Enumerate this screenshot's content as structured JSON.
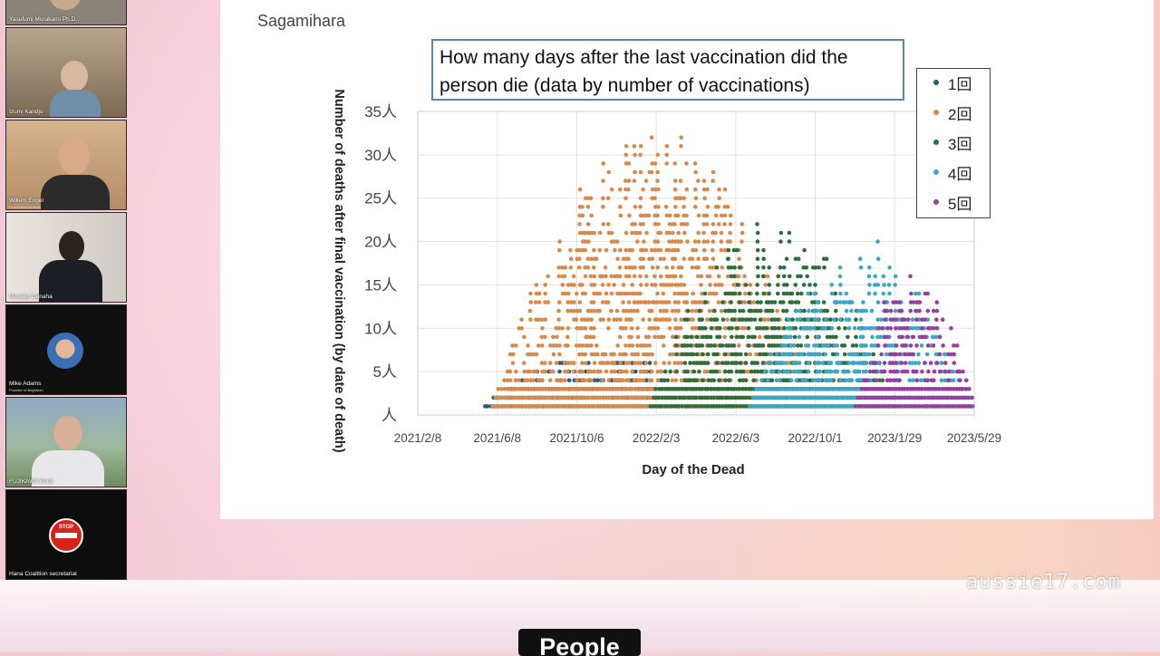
{
  "participants": [
    {
      "name": "Yasufumi Murakami Ph.D.",
      "subtitle": ""
    },
    {
      "name": "Izumi Kandjo",
      "subtitle": ""
    },
    {
      "name": "Willem Engel",
      "subtitle": "Foundation for truth"
    },
    {
      "name": "Masako Ganaha",
      "subtitle": ""
    },
    {
      "name": "Mike Adams",
      "subtitle": "Founder of Brighteon"
    },
    {
      "name": "FUJIKAWA Kenji",
      "subtitle": ""
    },
    {
      "name": "Hana Coalition secretariat",
      "subtitle": ""
    }
  ],
  "slide": {
    "location": "Sagamihara"
  },
  "watermark": "aussie17.com",
  "caption": "People",
  "icons": {
    "stop_logo": "stop-sign-logo-icon",
    "avatar": "avatar-icon"
  },
  "chart_data": {
    "type": "scatter",
    "title": "How many days after the last vaccination did the person die (data by number of vaccinations)",
    "xlabel": "Day of the Dead",
    "ylabel": "Number of deaths after final vaccination (by date of death)",
    "x_ticks": [
      "2021/2/8",
      "2021/6/8",
      "2021/10/6",
      "2022/2/3",
      "2022/6/3",
      "2022/10/1",
      "2023/1/29",
      "2023/5/29"
    ],
    "y_ticks": [
      "人",
      "5人",
      "10人",
      "15人",
      "20人",
      "25人",
      "30人",
      "35人"
    ],
    "ylim": [
      0,
      35
    ],
    "grid": true,
    "legend_position": "top-right",
    "series": [
      {
        "name": "1回",
        "color": "#1f5f7a",
        "window": [
          "2021/5/20",
          "2022/6/1"
        ],
        "peak": 6
      },
      {
        "name": "2回",
        "color": "#d98a4a",
        "window": [
          "2021/6/1",
          "2022/9/30"
        ],
        "peak": 33
      },
      {
        "name": "3回",
        "color": "#2e6e3c",
        "window": [
          "2022/1/25",
          "2023/2/1"
        ],
        "peak": 22
      },
      {
        "name": "4回",
        "color": "#3aa7c9",
        "window": [
          "2022/6/25",
          "2023/5/29"
        ],
        "peak": 19
      },
      {
        "name": "5回",
        "color": "#9b3d9e",
        "window": [
          "2022/12/1",
          "2023/5/29"
        ],
        "peak": 17
      }
    ]
  }
}
